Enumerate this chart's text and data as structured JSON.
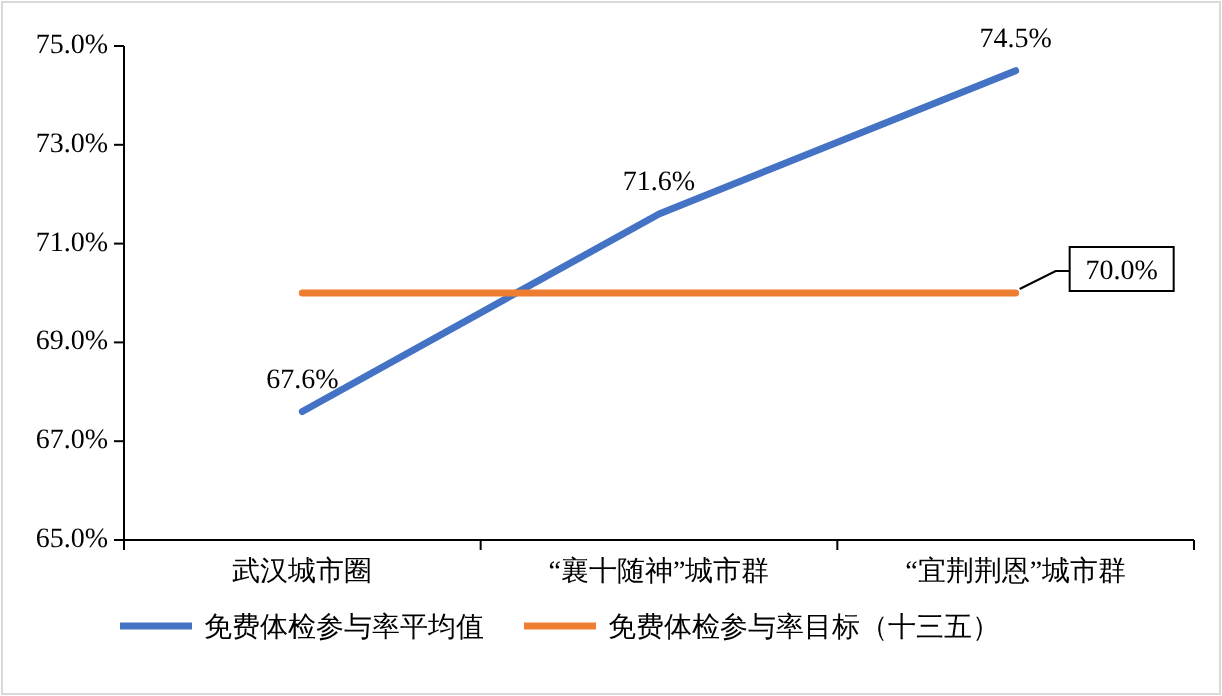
{
  "chart_data": {
    "type": "line",
    "categories": [
      "武汉城市圈",
      "“襄十随神”城市群",
      "“宜荆荆恩”城市群"
    ],
    "series": [
      {
        "name": "免费体检参与率平均值",
        "color": "#4472c4",
        "values": [
          67.6,
          71.6,
          74.5
        ],
        "value_labels": [
          "67.6%",
          "71.6%",
          "74.5%"
        ]
      },
      {
        "name": "免费体检参与率目标（十三五）",
        "color": "#ed7d31",
        "values": [
          70.0,
          70.0,
          70.0
        ],
        "value_labels": [
          null,
          null,
          "70.0%"
        ]
      }
    ],
    "ylim": [
      65,
      75
    ],
    "yticks": [
      {
        "value": 65,
        "label": "65.0%"
      },
      {
        "value": 67,
        "label": "67.0%"
      },
      {
        "value": 69,
        "label": "69.0%"
      },
      {
        "value": 71,
        "label": "71.0%"
      },
      {
        "value": 73,
        "label": "73.0%"
      },
      {
        "value": 75,
        "label": "75.0%"
      }
    ],
    "grid": false,
    "legend": "bottom",
    "marker": "none",
    "line_style": "solid"
  }
}
